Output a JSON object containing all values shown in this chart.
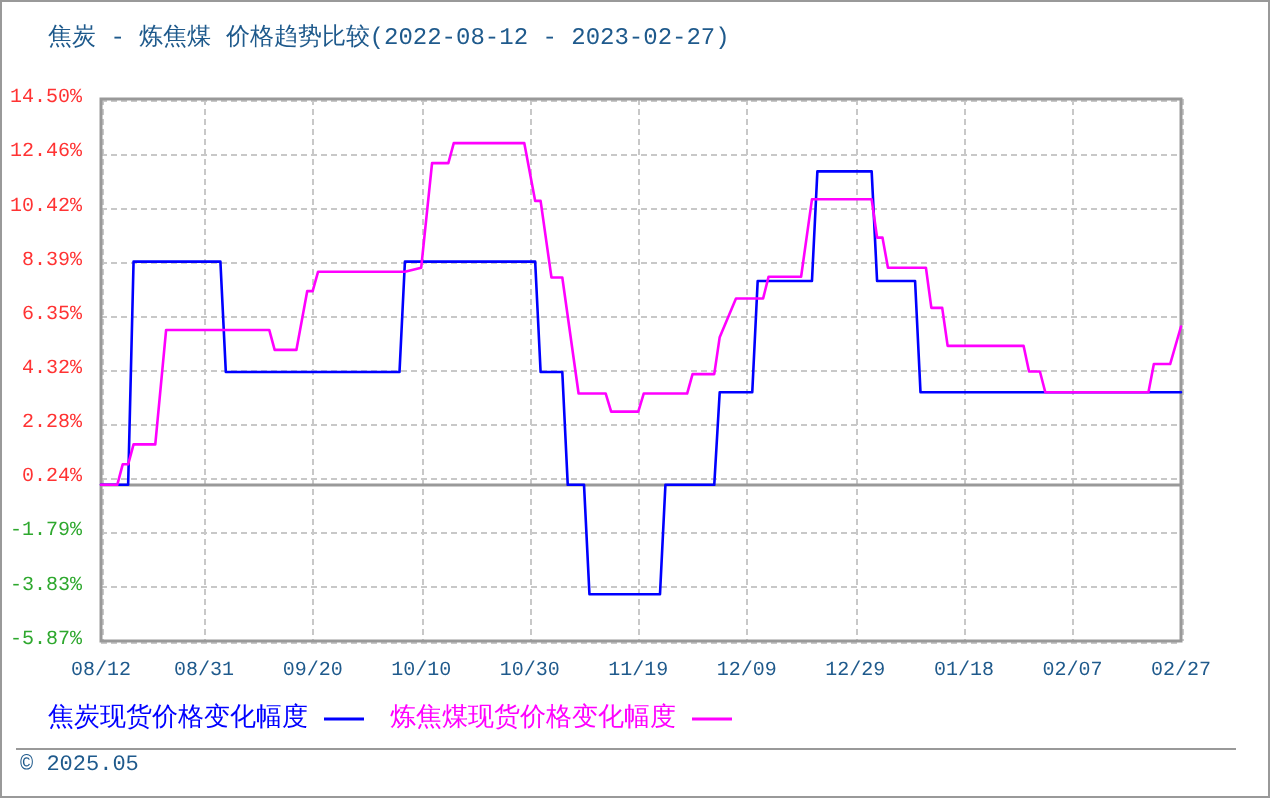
{
  "chart_data": {
    "type": "line",
    "title": "焦炭 - 炼焦煤 价格趋势比较(2022-08-12 - 2023-02-27)",
    "xlim": [
      "2022-08-12",
      "2023-02-27"
    ],
    "xticks": [
      {
        "value": "2022-08-12",
        "label": "08/12"
      },
      {
        "value": "2022-08-31",
        "label": "08/31"
      },
      {
        "value": "2022-09-20",
        "label": "09/20"
      },
      {
        "value": "2022-10-10",
        "label": "10/10"
      },
      {
        "value": "2022-10-30",
        "label": "10/30"
      },
      {
        "value": "2022-11-19",
        "label": "11/19"
      },
      {
        "value": "2022-12-09",
        "label": "12/09"
      },
      {
        "value": "2022-12-29",
        "label": "12/29"
      },
      {
        "value": "2023-01-18",
        "label": "01/18"
      },
      {
        "value": "2023-02-07",
        "label": "02/07"
      },
      {
        "value": "2023-02-27",
        "label": "02/27"
      }
    ],
    "ylim": [
      -5.87,
      14.5
    ],
    "yticks": [
      {
        "value": 14.5,
        "label": "14.50%"
      },
      {
        "value": 12.46,
        "label": "12.46%"
      },
      {
        "value": 10.42,
        "label": "10.42%"
      },
      {
        "value": 8.39,
        "label": "8.39%"
      },
      {
        "value": 6.35,
        "label": "6.35%"
      },
      {
        "value": 4.32,
        "label": "4.32%"
      },
      {
        "value": 2.28,
        "label": "2.28%"
      },
      {
        "value": 0.24,
        "label": "0.24%"
      },
      {
        "value": -1.79,
        "label": "-1.79%"
      },
      {
        "value": -3.83,
        "label": "-3.83%"
      },
      {
        "value": -5.87,
        "label": "-5.87%"
      }
    ],
    "grid": true,
    "legend": "bottom",
    "ref_lines": [
      {
        "axis": "y",
        "value": 0,
        "color": "#999999"
      }
    ],
    "series": [
      {
        "name": "焦炭现货价格变化幅度",
        "color": "#0000ff",
        "x": [
          "2022-08-12",
          "2022-08-17",
          "2022-08-18",
          "2022-09-03",
          "2022-09-04",
          "2022-10-06",
          "2022-10-07",
          "2022-10-31",
          "2022-11-01",
          "2022-11-05",
          "2022-11-06",
          "2022-11-09",
          "2022-11-10",
          "2022-11-23",
          "2022-11-24",
          "2022-12-03",
          "2022-12-04",
          "2022-12-10",
          "2022-12-11",
          "2022-12-21",
          "2022-12-22",
          "2023-01-01",
          "2023-01-02",
          "2023-01-09",
          "2023-01-10",
          "2023-02-27"
        ],
        "values": [
          0,
          0,
          8.39,
          8.39,
          4.24,
          4.24,
          8.39,
          8.39,
          4.24,
          4.24,
          0,
          0,
          -4.11,
          -4.11,
          0,
          0,
          3.48,
          3.48,
          7.66,
          7.66,
          11.78,
          11.78,
          7.66,
          7.66,
          3.48,
          3.48
        ]
      },
      {
        "name": "炼焦煤现货价格变化幅度",
        "color": "#ff00ff",
        "x": [
          "2022-08-12",
          "2022-08-15",
          "2022-08-16",
          "2022-08-17",
          "2022-08-18",
          "2022-08-22",
          "2022-08-24",
          "2022-09-12",
          "2022-09-13",
          "2022-09-17",
          "2022-09-19",
          "2022-09-20",
          "2022-09-21",
          "2022-10-07",
          "2022-10-10",
          "2022-10-12",
          "2022-10-15",
          "2022-10-16",
          "2022-10-29",
          "2022-10-31",
          "2022-11-01",
          "2022-11-03",
          "2022-11-05",
          "2022-11-08",
          "2022-11-13",
          "2022-11-14",
          "2022-11-19",
          "2022-11-20",
          "2022-11-28",
          "2022-11-29",
          "2022-12-03",
          "2022-12-04",
          "2022-12-07",
          "2022-12-12",
          "2022-12-13",
          "2022-12-19",
          "2022-12-21",
          "2023-01-01",
          "2023-01-02",
          "2023-01-03",
          "2023-01-04",
          "2023-01-11",
          "2023-01-12",
          "2023-01-14",
          "2023-01-15",
          "2023-01-29",
          "2023-01-30",
          "2023-02-01",
          "2023-02-02",
          "2023-02-21",
          "2023-02-22",
          "2023-02-25",
          "2023-02-27"
        ],
        "values": [
          0,
          0,
          0.77,
          0.77,
          1.52,
          1.52,
          5.82,
          5.82,
          5.07,
          5.07,
          7.28,
          7.28,
          8.01,
          8.01,
          8.16,
          12.09,
          12.09,
          12.84,
          12.84,
          10.67,
          10.67,
          7.79,
          7.79,
          3.43,
          3.43,
          2.75,
          2.75,
          3.43,
          3.43,
          4.16,
          4.16,
          5.55,
          7.0,
          7.0,
          7.82,
          7.82,
          10.73,
          10.73,
          9.29,
          9.29,
          8.16,
          8.16,
          6.65,
          6.65,
          5.22,
          5.22,
          4.26,
          4.26,
          3.48,
          3.48,
          4.54,
          4.54,
          5.95
        ]
      }
    ],
    "annotations": [
      "© 2025.05"
    ]
  }
}
